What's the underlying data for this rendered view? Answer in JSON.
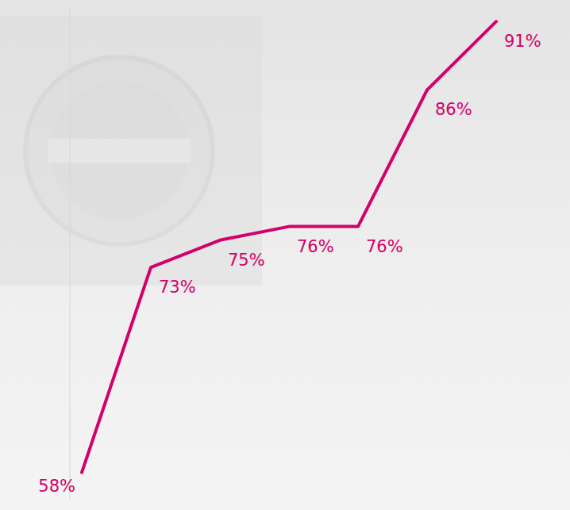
{
  "chart_data": {
    "type": "line",
    "categories": [
      null,
      null,
      null,
      null,
      null,
      null,
      null
    ],
    "values": [
      58,
      73,
      75,
      76,
      76,
      86,
      91
    ],
    "value_labels": [
      "58%",
      "73%",
      "75%",
      "76%",
      "76%",
      "86%",
      "91%"
    ],
    "color": "#d3006b",
    "ylim": [
      56,
      92
    ],
    "data_labels": true,
    "tick_labels": false,
    "grid": false
  }
}
